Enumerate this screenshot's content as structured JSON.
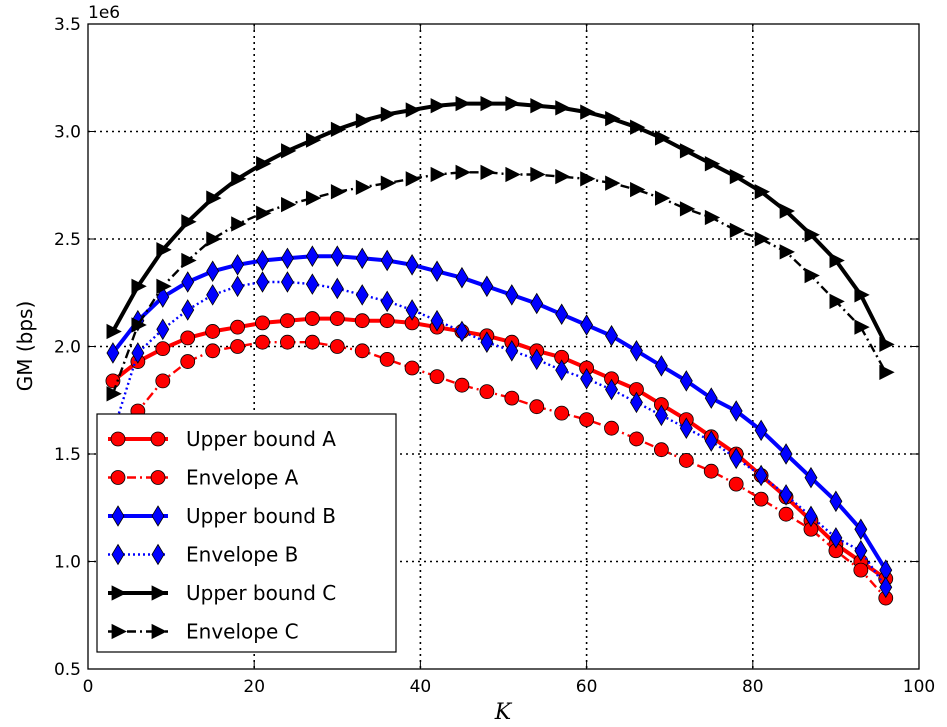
{
  "chart_data": {
    "type": "line",
    "xlabel": "K",
    "ylabel": "GM (bps)",
    "offset_text": "1e6",
    "xlim": [
      0,
      100
    ],
    "ylim": [
      0.5,
      3.5
    ],
    "xticks": [
      0,
      20,
      40,
      60,
      80,
      100
    ],
    "xtick_labels": [
      "0",
      "20",
      "40",
      "60",
      "80",
      "100"
    ],
    "yticks": [
      0.5,
      1.0,
      1.5,
      2.0,
      2.5,
      3.0,
      3.5
    ],
    "ytick_labels": [
      "0.5",
      "1.0",
      "1.5",
      "2.0",
      "2.5",
      "3.0",
      "3.5"
    ],
    "grid": true,
    "legend_position": "lower-left",
    "x": [
      3,
      6,
      9,
      12,
      15,
      18,
      21,
      24,
      27,
      30,
      33,
      36,
      39,
      42,
      45,
      48,
      51,
      54,
      57,
      60,
      63,
      66,
      69,
      72,
      75,
      78,
      81,
      84,
      87,
      90,
      93,
      96
    ],
    "series": [
      {
        "name": "Upper bound A",
        "color": "#ff0000",
        "linestyle": "solid",
        "marker": "circle",
        "values": [
          1.84,
          1.93,
          1.99,
          2.04,
          2.07,
          2.09,
          2.11,
          2.12,
          2.13,
          2.13,
          2.12,
          2.12,
          2.11,
          2.09,
          2.07,
          2.05,
          2.02,
          1.98,
          1.95,
          1.9,
          1.85,
          1.8,
          1.73,
          1.66,
          1.58,
          1.5,
          1.4,
          1.3,
          1.19,
          1.08,
          1.0,
          0.92
        ]
      },
      {
        "name": "Envelope A",
        "color": "#ff0000",
        "linestyle": "dashdot",
        "marker": "circle",
        "values": [
          1.54,
          1.7,
          1.84,
          1.93,
          1.98,
          2.0,
          2.02,
          2.02,
          2.02,
          2.0,
          1.98,
          1.94,
          1.9,
          1.86,
          1.82,
          1.79,
          1.76,
          1.72,
          1.69,
          1.66,
          1.62,
          1.57,
          1.52,
          1.47,
          1.42,
          1.36,
          1.29,
          1.22,
          1.15,
          1.05,
          0.96,
          0.83
        ]
      },
      {
        "name": "Upper bound B",
        "color": "#0000ff",
        "linestyle": "solid",
        "marker": "diamond",
        "values": [
          1.97,
          2.12,
          2.23,
          2.3,
          2.35,
          2.38,
          2.4,
          2.41,
          2.42,
          2.42,
          2.41,
          2.4,
          2.38,
          2.35,
          2.32,
          2.28,
          2.24,
          2.2,
          2.15,
          2.1,
          2.05,
          1.98,
          1.91,
          1.84,
          1.76,
          1.7,
          1.61,
          1.5,
          1.39,
          1.28,
          1.15,
          0.96
        ]
      },
      {
        "name": "Envelope B",
        "color": "#0000ff",
        "linestyle": "dotted",
        "marker": "diamond",
        "values": [
          1.6,
          1.97,
          2.08,
          2.17,
          2.24,
          2.28,
          2.3,
          2.3,
          2.29,
          2.27,
          2.24,
          2.21,
          2.17,
          2.12,
          2.07,
          2.02,
          1.98,
          1.94,
          1.89,
          1.85,
          1.8,
          1.74,
          1.68,
          1.62,
          1.56,
          1.48,
          1.4,
          1.31,
          1.21,
          1.11,
          1.05,
          0.88
        ]
      },
      {
        "name": "Upper bound C",
        "color": "#000000",
        "linestyle": "solid",
        "marker": "triangle-right",
        "values": [
          2.07,
          2.28,
          2.45,
          2.58,
          2.69,
          2.78,
          2.85,
          2.91,
          2.96,
          3.01,
          3.05,
          3.08,
          3.1,
          3.12,
          3.13,
          3.13,
          3.13,
          3.12,
          3.11,
          3.09,
          3.06,
          3.02,
          2.97,
          2.91,
          2.85,
          2.79,
          2.72,
          2.63,
          2.52,
          2.4,
          2.24,
          2.01
        ]
      },
      {
        "name": "Envelope C",
        "color": "#000000",
        "linestyle": "dashdot",
        "marker": "triangle-right",
        "values": [
          1.78,
          2.1,
          2.28,
          2.4,
          2.5,
          2.57,
          2.62,
          2.66,
          2.69,
          2.72,
          2.74,
          2.76,
          2.78,
          2.8,
          2.81,
          2.81,
          2.8,
          2.8,
          2.79,
          2.78,
          2.76,
          2.73,
          2.69,
          2.64,
          2.6,
          2.54,
          2.5,
          2.44,
          2.33,
          2.21,
          2.09,
          1.88
        ]
      }
    ]
  }
}
